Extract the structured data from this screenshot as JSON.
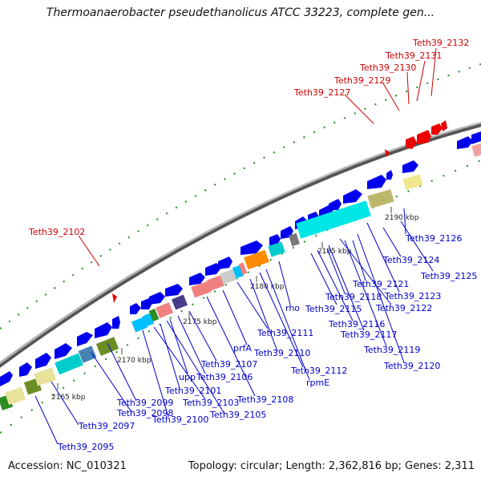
{
  "header": {
    "title": "Thermoanaerobacter pseudethanolicus ATCC 33223, complete gen..."
  },
  "footer": {
    "accession": "Accession: NC_010321",
    "info": "Topology: circular; Length: 2,362,816 bp; Genes: 2,311"
  },
  "ticks": [
    "2165 kbp",
    "2170 kbp",
    "2175 kbp",
    "2180 kbp",
    "2185 kbp",
    "2190 kbp"
  ],
  "labels": {
    "red": [
      "Teth39_2132",
      "Teth39_2131",
      "Teth39_2130",
      "Teth39_2129",
      "Teth39_2127",
      "Teth39_2102"
    ],
    "blue": [
      "Teth39_2126",
      "Teth39_2124",
      "Teth39_2125",
      "Teth39_2121",
      "Teth39_2123",
      "Teth39_2118",
      "Teth39_2122",
      "rho",
      "Teth39_2115",
      "Teth39_2116",
      "Teth39_2117",
      "Teth39_2119",
      "Teth39_2120",
      "Teth39_2111",
      "prfA",
      "Teth39_2110",
      "Teth39_2112",
      "rpmE",
      "Teth39_2107",
      "Teth39_2106",
      "upp",
      "Teth39_2101",
      "Teth39_2108",
      "Teth39_2103",
      "Teth39_2099",
      "Teth39_2105",
      "Teth39_2098",
      "Teth39_2100",
      "Teth39_2097",
      "Teth39_2095"
    ]
  },
  "colors": {
    "forward_gene": "#0000ee",
    "rna_gene": "#ee0000",
    "label_blue": "#0000cc",
    "label_red": "#cc0000",
    "gc_marks": "#228b22",
    "backbone": "#888888"
  }
}
